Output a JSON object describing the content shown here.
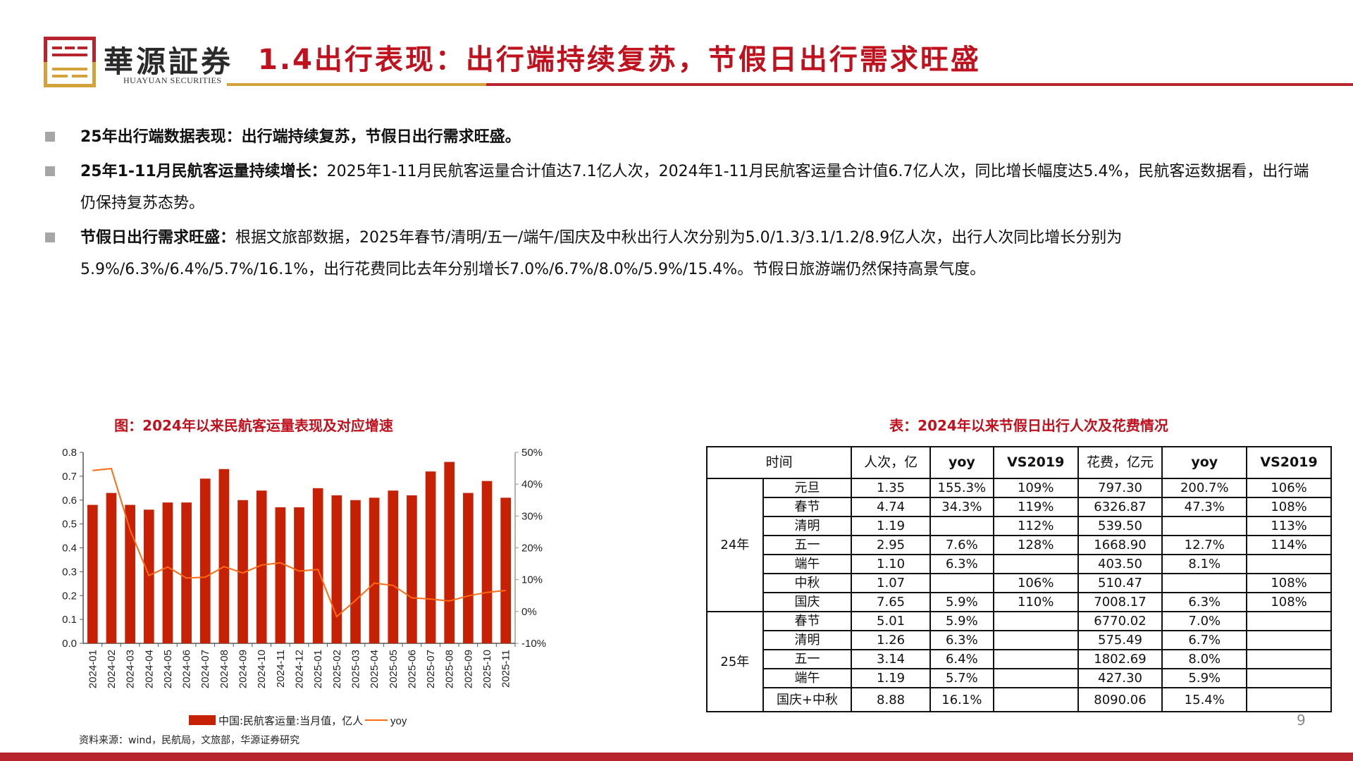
{
  "header": {
    "brand_cn": "華源証券",
    "brand_en": "HUAYUAN SECURITIES",
    "title": "1.4出行表现：出行端持续复苏，节假日出行需求旺盛",
    "colors": {
      "red": "#b8242c",
      "title_red": "#c0121e",
      "gold": "#d4a23a"
    }
  },
  "bullets": [
    {
      "bold": "25年出行端数据表现：出行端持续复苏，节假日出行需求旺盛。",
      "text": ""
    },
    {
      "bold": "25年1-11月民航客运量持续增长：",
      "text": "2025年1-11月民航客运量合计值达7.1亿人次，2024年1-11月民航客运量合计值6.7亿人次，同比增长幅度达5.4%，民航客运数据看，出行端仍保持复苏态势。"
    },
    {
      "bold": "节假日出行需求旺盛：",
      "text": "根据文旅部数据，2025年春节/清明/五一/端午/国庆及中秋出行人次分别为5.0/1.3/3.1/1.2/8.9亿人次，出行人次同比增长分别为5.9%/6.3%/6.4%/5.7%/16.1%，出行花费同比去年分别增长7.0%/6.7%/8.0%/5.9%/15.4%。节假日旅游端仍然保持高景气度。"
    }
  ],
  "chart_title": "图：2024年以来民航客运量表现及对应增速",
  "chart_data": {
    "type": "bar+line",
    "title": "图：2024年以来民航客运量表现及对应增速",
    "categories": [
      "2024-01",
      "2024-02",
      "2024-03",
      "2024-04",
      "2024-05",
      "2024-06",
      "2024-07",
      "2024-08",
      "2024-09",
      "2024-10",
      "2024-11",
      "2024-12",
      "2025-01",
      "2025-02",
      "2025-03",
      "2025-04",
      "2025-05",
      "2025-06",
      "2025-07",
      "2025-08",
      "2025-09",
      "2025-10",
      "2025-11"
    ],
    "series": [
      {
        "name": "中国:民航客运量:当月值，亿人",
        "type": "bar",
        "axis": "left",
        "color": "#c62104",
        "values": [
          0.58,
          0.63,
          0.58,
          0.56,
          0.59,
          0.59,
          0.69,
          0.73,
          0.6,
          0.64,
          0.57,
          0.57,
          0.65,
          0.62,
          0.6,
          0.61,
          0.64,
          0.62,
          0.72,
          0.76,
          0.63,
          0.68,
          0.61
        ]
      },
      {
        "name": "yoy",
        "type": "line",
        "axis": "right",
        "color": "#ff6a13",
        "values": [
          44.3,
          44.9,
          25.6,
          11.3,
          14.0,
          10.5,
          10.8,
          14.1,
          12.1,
          14.6,
          15.3,
          12.7,
          13.2,
          -1.6,
          3.5,
          8.9,
          8.2,
          4.3,
          3.9,
          3.3,
          4.9,
          6.0,
          6.6
        ]
      }
    ],
    "left_axis": {
      "ylim": [
        0,
        0.8
      ],
      "ticks": [
        "0.0",
        "0.1",
        "0.2",
        "0.3",
        "0.4",
        "0.5",
        "0.6",
        "0.7",
        "0.8"
      ]
    },
    "right_axis": {
      "ylim": [
        -10,
        50
      ],
      "ticks": [
        "-10%",
        "0%",
        "10%",
        "20%",
        "30%",
        "40%",
        "50%"
      ]
    },
    "legend": [
      "中国:民航客运量:当月值，亿人",
      "yoy"
    ],
    "legend_position": "bottom"
  },
  "source": "资料来源：wind，民航局，文旅部，华源证券研究",
  "table": {
    "title": "表：2024年以来节假日出行人次及花费情况",
    "headers": [
      "时间",
      "人次，亿",
      "yoy",
      "VS2019",
      "花费，亿元",
      "yoy",
      "VS2019"
    ],
    "groups": [
      {
        "year": "24年",
        "rows": [
          [
            "元旦",
            "1.35",
            "155.3%",
            "109%",
            "797.30",
            "200.7%",
            "106%"
          ],
          [
            "春节",
            "4.74",
            "34.3%",
            "119%",
            "6326.87",
            "47.3%",
            "108%"
          ],
          [
            "清明",
            "1.19",
            "",
            "112%",
            "539.50",
            "",
            "113%"
          ],
          [
            "五一",
            "2.95",
            "7.6%",
            "128%",
            "1668.90",
            "12.7%",
            "114%"
          ],
          [
            "端午",
            "1.10",
            "6.3%",
            "",
            "403.50",
            "8.1%",
            ""
          ],
          [
            "中秋",
            "1.07",
            "",
            "106%",
            "510.47",
            "",
            "108%"
          ],
          [
            "国庆",
            "7.65",
            "5.9%",
            "110%",
            "7008.17",
            "6.3%",
            "108%"
          ]
        ]
      },
      {
        "year": "25年",
        "rows": [
          [
            "春节",
            "5.01",
            "5.9%",
            "",
            "6770.02",
            "7.0%",
            ""
          ],
          [
            "清明",
            "1.26",
            "6.3%",
            "",
            "575.49",
            "6.7%",
            ""
          ],
          [
            "五一",
            "3.14",
            "6.4%",
            "",
            "1802.69",
            "8.0%",
            ""
          ],
          [
            "端午",
            "1.19",
            "5.7%",
            "",
            "427.30",
            "5.9%",
            ""
          ],
          [
            "国庆+中秋",
            "8.88",
            "16.1%",
            "",
            "8090.06",
            "15.4%",
            ""
          ]
        ]
      }
    ]
  },
  "page_number": "9"
}
